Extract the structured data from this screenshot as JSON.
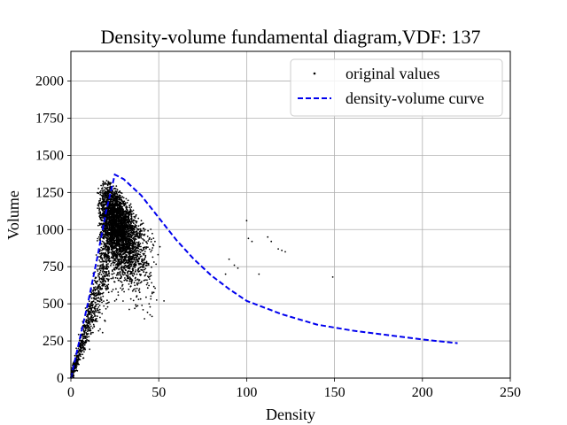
{
  "chart_data": {
    "type": "scatter",
    "title": "Density-volume fundamental diagram,VDF: 137",
    "xlabel": "Density",
    "ylabel": "Volume",
    "xlim": [
      0,
      250
    ],
    "ylim": [
      0,
      2200
    ],
    "xticks": [
      0,
      50,
      100,
      150,
      200,
      250
    ],
    "yticks": [
      0,
      250,
      500,
      750,
      1000,
      1250,
      1500,
      1750,
      2000
    ],
    "grid": true,
    "legend_position": "top-right",
    "series": [
      {
        "name": "original values",
        "kind": "scatter",
        "color": "#000000",
        "cloud_summary": "dense cloud of ~5000 points, density 0-80, volume 0-1500, peak near density 20-30",
        "outliers": [
          {
            "x": 100,
            "y": 1060
          },
          {
            "x": 101,
            "y": 940
          },
          {
            "x": 103,
            "y": 920
          },
          {
            "x": 107,
            "y": 700
          },
          {
            "x": 112,
            "y": 950
          },
          {
            "x": 114,
            "y": 920
          },
          {
            "x": 118,
            "y": 870
          },
          {
            "x": 120,
            "y": 860
          },
          {
            "x": 122,
            "y": 850
          },
          {
            "x": 149,
            "y": 680
          },
          {
            "x": 95,
            "y": 740
          },
          {
            "x": 93,
            "y": 760
          },
          {
            "x": 90,
            "y": 800
          },
          {
            "x": 88,
            "y": 700
          }
        ]
      },
      {
        "name": "density-volume curve",
        "kind": "line",
        "style": "dashed",
        "color": "#0000ee",
        "x": [
          0,
          5,
          10,
          15,
          20,
          25,
          30,
          40,
          50,
          60,
          70,
          80,
          90,
          100,
          120,
          140,
          160,
          180,
          200,
          220
        ],
        "y": [
          0,
          260,
          520,
          810,
          1120,
          1370,
          1340,
          1230,
          1080,
          930,
          800,
          690,
          600,
          520,
          430,
          360,
          320,
          290,
          260,
          235
        ]
      }
    ]
  }
}
